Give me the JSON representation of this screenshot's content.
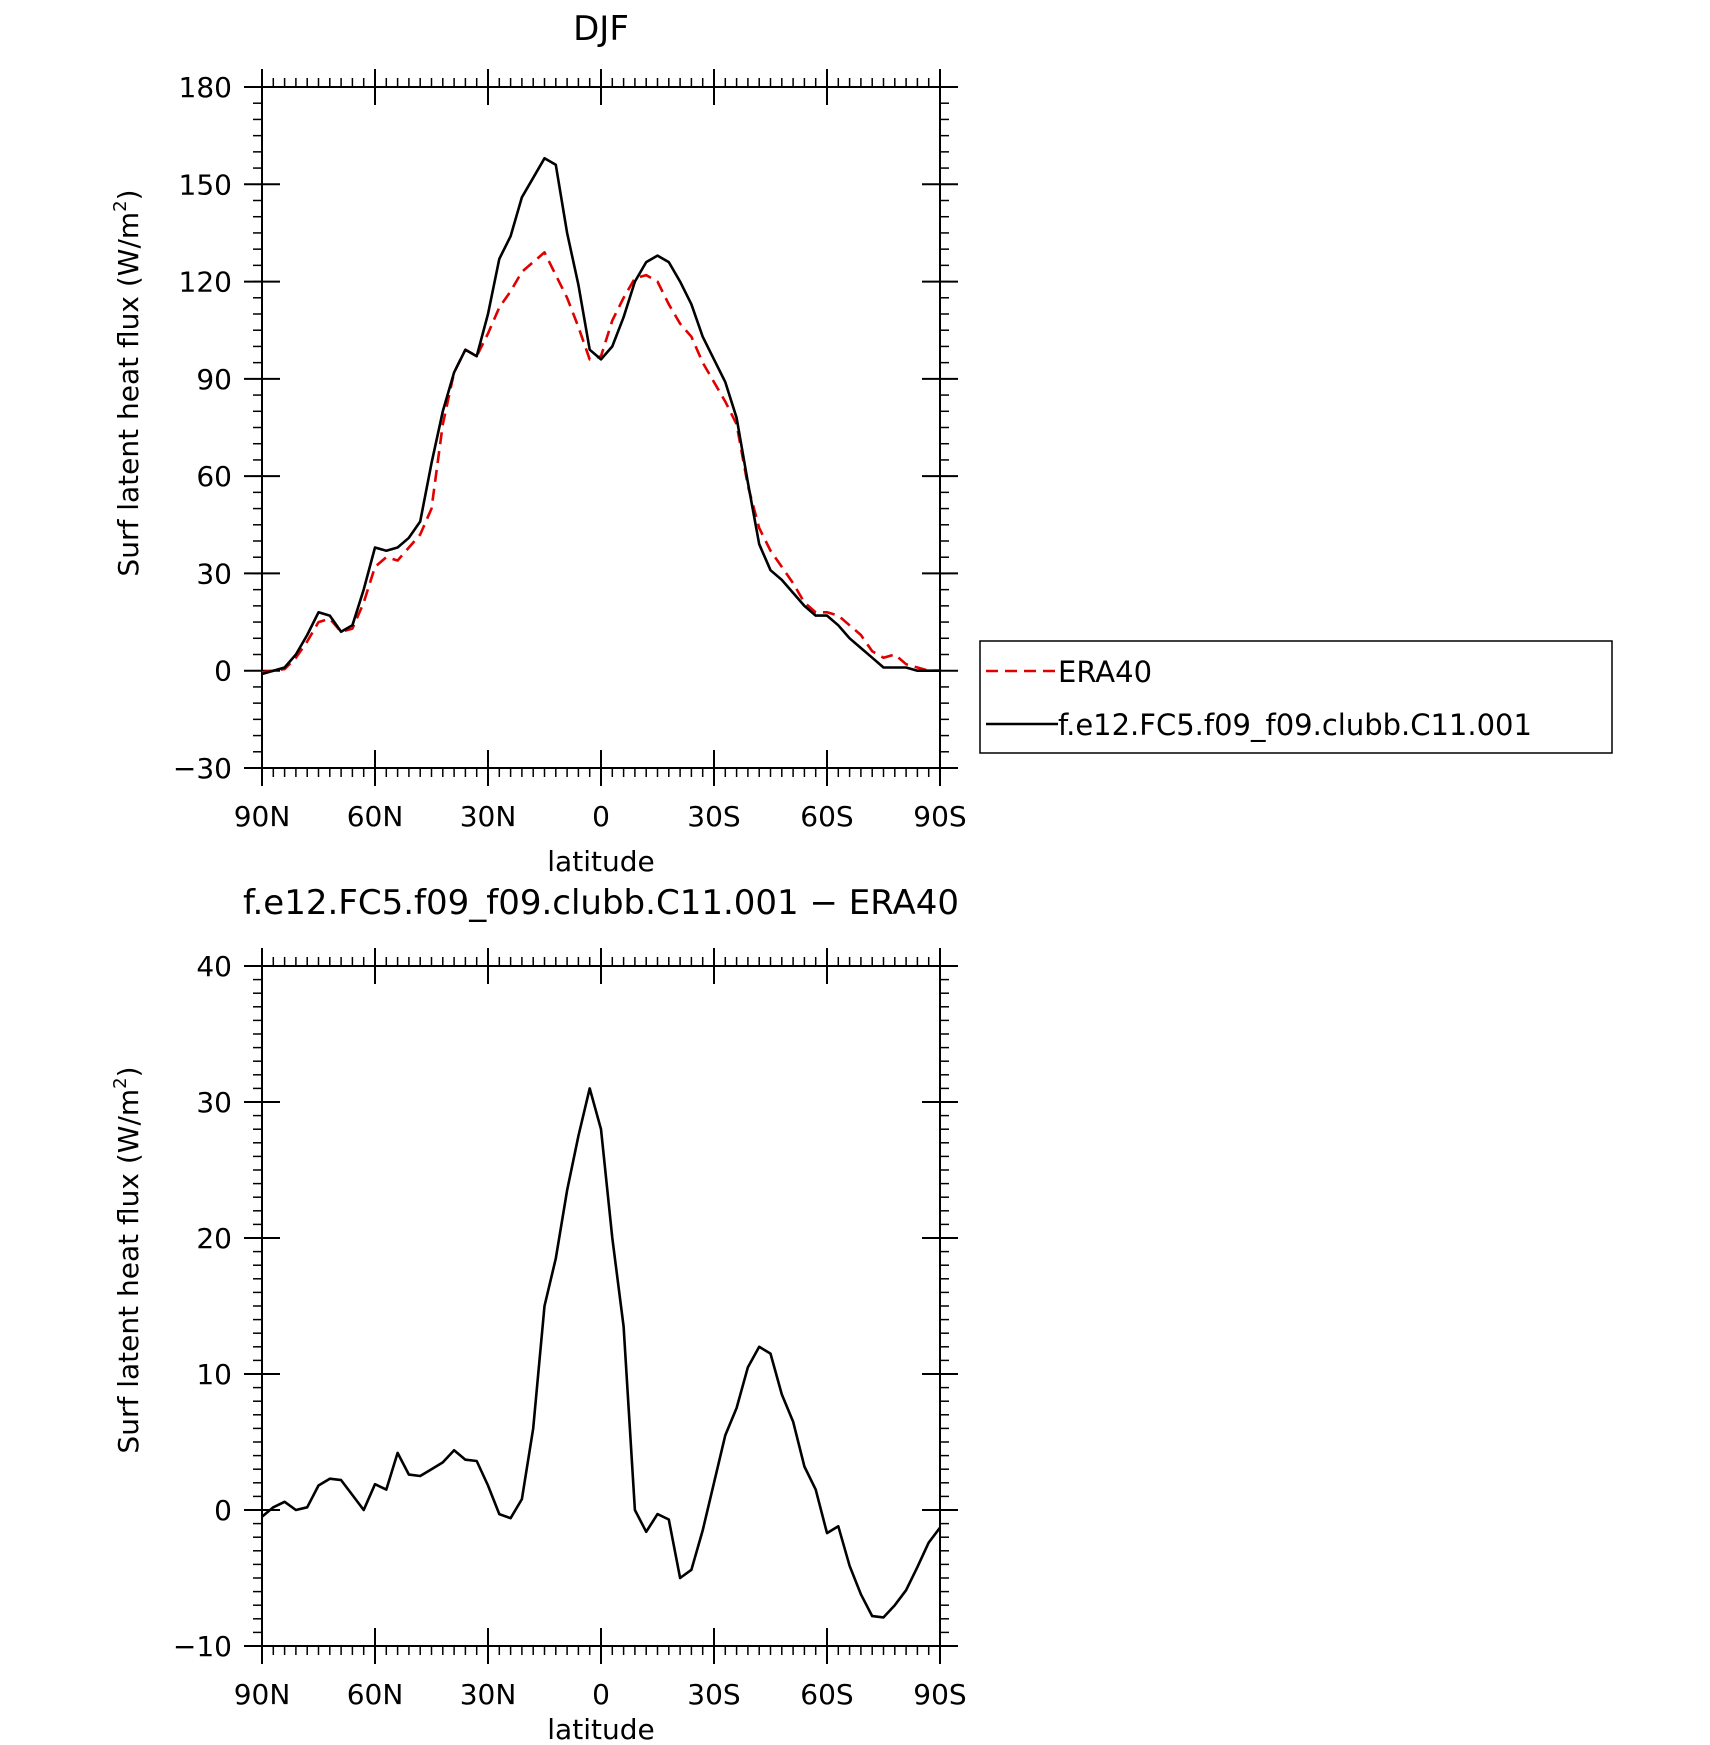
{
  "chart_data": [
    {
      "type": "line",
      "title": "DJF",
      "xlabel": "latitude",
      "ylabel": "Surf latent heat flux (W/m²)",
      "ylabel_main": "Surf latent heat flux (W/m",
      "ylabel_sup": "2",
      "ylabel_close": ")",
      "xlim": [
        90,
        -90
      ],
      "ylim": [
        -30,
        180
      ],
      "xticks": [
        90,
        60,
        30,
        0,
        -30,
        -60,
        -90
      ],
      "xtick_labels": [
        "90N",
        "60N",
        "30N",
        "0",
        "30S",
        "60S",
        "90S"
      ],
      "yticks": [
        -30,
        0,
        30,
        60,
        90,
        120,
        150,
        180
      ],
      "ytick_labels": [
        "−30",
        "0",
        "30",
        "60",
        "90",
        "120",
        "150",
        "180"
      ],
      "legend": {
        "placement": "right",
        "entries": [
          "ERA40",
          "f.e12.FC5.f09_f09.clubb.C11.001"
        ]
      },
      "series": [
        {
          "name": "ERA40",
          "color": "#e00000",
          "dash": true,
          "x": [
            90,
            87,
            84,
            81,
            78,
            75,
            72,
            69,
            66,
            63,
            60,
            57,
            54,
            51,
            48,
            45,
            42,
            39,
            36,
            33,
            30,
            27,
            24,
            21,
            18,
            15,
            12,
            9,
            6,
            3,
            0,
            -3,
            -6,
            -9,
            -12,
            -15,
            -18,
            -21,
            -24,
            -27,
            -30,
            -33,
            -36,
            -39,
            -42,
            -45,
            -48,
            -51,
            -54,
            -57,
            -60,
            -63,
            -66,
            -69,
            -72,
            -75,
            -78,
            -81,
            -84,
            -87,
            -90
          ],
          "y": [
            -0.5,
            0,
            0.5,
            4,
            9,
            15,
            16,
            12,
            13,
            21,
            32,
            35,
            34,
            38,
            42,
            50,
            76,
            92,
            99,
            97,
            104,
            112,
            117,
            123,
            126,
            129,
            122,
            115,
            106,
            96,
            97,
            108,
            115,
            121,
            122,
            120,
            113,
            107,
            103,
            95,
            89,
            83,
            76,
            57,
            44,
            37,
            32,
            27,
            21,
            18,
            18,
            17,
            14,
            11,
            6,
            4,
            5,
            2,
            1,
            0,
            0
          ]
        },
        {
          "name": "f.e12.FC5.f09_f09.clubb.C11.001",
          "color": "#000000",
          "dash": false,
          "x": [
            90,
            87,
            84,
            81,
            78,
            75,
            72,
            69,
            66,
            63,
            60,
            57,
            54,
            51,
            48,
            45,
            42,
            39,
            36,
            33,
            30,
            27,
            24,
            21,
            18,
            15,
            12,
            9,
            6,
            3,
            0,
            -3,
            -6,
            -9,
            -12,
            -15,
            -18,
            -21,
            -24,
            -27,
            -30,
            -33,
            -36,
            -39,
            -42,
            -45,
            -48,
            -51,
            -54,
            -57,
            -60,
            -63,
            -66,
            -69,
            -72,
            -75,
            -78,
            -81,
            -84,
            -87,
            -90
          ],
          "y": [
            -1,
            0,
            1,
            5,
            11,
            18,
            17,
            12,
            14,
            25,
            38,
            37,
            38,
            41,
            46,
            64,
            80,
            92,
            99,
            97,
            110,
            127,
            134,
            146,
            152,
            158,
            156,
            135,
            119,
            99,
            96,
            100,
            109,
            120,
            126,
            128,
            126,
            120,
            113,
            103,
            96,
            89,
            78,
            58,
            39,
            31,
            28,
            24,
            20,
            17,
            17,
            14,
            10,
            7,
            4,
            1,
            1,
            1,
            0,
            0,
            0
          ]
        }
      ]
    },
    {
      "type": "line",
      "title": "f.e12.FC5.f09_f09.clubb.C11.001 − ERA40",
      "xlabel": "latitude",
      "ylabel": "Surf latent heat flux (W/m²)",
      "ylabel_main": "Surf latent heat flux (W/m",
      "ylabel_sup": "2",
      "ylabel_close": ")",
      "xlim": [
        90,
        -90
      ],
      "ylim": [
        -10,
        40
      ],
      "xticks": [
        90,
        60,
        30,
        0,
        -30,
        -60,
        -90
      ],
      "xtick_labels": [
        "90N",
        "60N",
        "30N",
        "0",
        "30S",
        "60S",
        "90S"
      ],
      "yticks": [
        -10,
        0,
        10,
        20,
        30,
        40
      ],
      "ytick_labels": [
        "−10",
        "0",
        "10",
        "20",
        "30",
        "40"
      ],
      "series": [
        {
          "color": "#000000",
          "dash": false,
          "x": [
            90,
            87,
            84,
            81,
            78,
            75,
            72,
            69,
            66,
            63,
            60,
            57,
            54,
            51,
            48,
            45,
            42,
            39,
            36,
            33,
            30,
            27,
            24,
            21,
            18,
            15,
            12,
            9,
            6,
            3,
            0,
            -3,
            -6,
            -9,
            -12,
            -15,
            -18,
            -21,
            -24,
            -27,
            -30,
            -33,
            -36,
            -39,
            -42,
            -45,
            -48,
            -51,
            -54,
            -57,
            -60,
            -63,
            -66,
            -69,
            -72,
            -75,
            -78,
            -81,
            -84,
            -87,
            -90
          ],
          "y": [
            -0.5,
            0.2,
            0.6,
            0,
            0.2,
            1.8,
            2.3,
            2.2,
            1.1,
            0,
            1.9,
            1.5,
            4.2,
            2.6,
            2.5,
            3,
            3.5,
            4.4,
            3.7,
            3.6,
            1.8,
            -0.3,
            -0.6,
            0.8,
            6,
            15,
            18.5,
            23.5,
            27.5,
            31,
            28,
            20,
            13.5,
            0,
            -1.6,
            -0.3,
            -0.7,
            -5,
            -4.4,
            -1.5,
            2,
            5.5,
            7.5,
            10.5,
            12,
            11.5,
            8.5,
            6.5,
            3.2,
            1.5,
            -1.7,
            -1.2,
            -4.1,
            -6.2,
            -7.8,
            -7.9,
            -7,
            -5.9,
            -4.2,
            -2.4,
            -1.3
          ]
        }
      ]
    }
  ]
}
